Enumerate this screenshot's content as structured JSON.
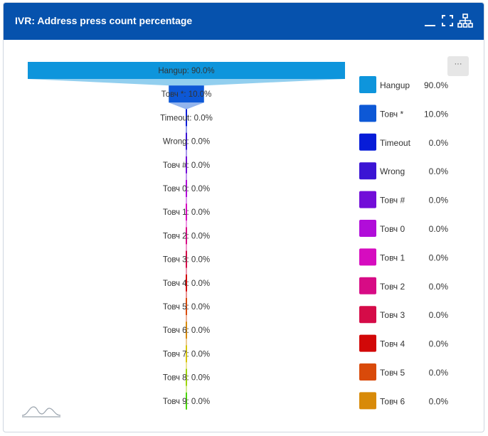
{
  "header": {
    "title": "IVR: Address press count percentage"
  },
  "icons": {
    "minimize": "minimize-icon",
    "fullscreen": "fullscreen-icon",
    "hierarchy": "hierarchy-icon",
    "more": "more-options-icon",
    "chart_logo": "chart-logo-icon"
  },
  "more_label": "···",
  "chart_data": {
    "type": "funnel",
    "title": "IVR: Address press count percentage",
    "categories": [
      "Hangup",
      "Товч *",
      "Timeout",
      "Wrong",
      "Товч #",
      "Товч 0",
      "Товч 1",
      "Товч 2",
      "Товч 3",
      "Товч 4",
      "Товч 5",
      "Товч 6",
      "Товч 7",
      "Товч 8",
      "Товч 9"
    ],
    "values": [
      90.0,
      10.0,
      0.0,
      0.0,
      0.0,
      0.0,
      0.0,
      0.0,
      0.0,
      0.0,
      0.0,
      0.0,
      0.0,
      0.0,
      0.0
    ],
    "labels": [
      "Hangup: 90.0%",
      "Товч *: 10.0%",
      "Timeout: 0.0%",
      "Wrong: 0.0%",
      "Товч #: 0.0%",
      "Товч 0: 0.0%",
      "Товч 1: 0.0%",
      "Товч 2: 0.0%",
      "Товч 3: 0.0%",
      "Товч 4: 0.0%",
      "Товч 5: 0.0%",
      "Товч 6: 0.0%",
      "Товч 7: 0.0%",
      "Товч 8: 0.0%",
      "Товч 9: 0.0%"
    ],
    "colors": [
      "#0e95dc",
      "#0d58d6",
      "#071cd8",
      "#3b14d4",
      "#720dd8",
      "#b10dd9",
      "#d60cbf",
      "#d70b85",
      "#d50b48",
      "#d20808",
      "#d94a0a",
      "#d88a08",
      "#d6c40c",
      "#9dd40c",
      "#4ad40b"
    ],
    "legend": {
      "position": "right",
      "items": [
        {
          "name": "Hangup",
          "value": "90.0%"
        },
        {
          "name": "Товч *",
          "value": "10.0%"
        },
        {
          "name": "Timeout",
          "value": "0.0%"
        },
        {
          "name": "Wrong",
          "value": "0.0%"
        },
        {
          "name": "Товч #",
          "value": "0.0%"
        },
        {
          "name": "Товч 0",
          "value": "0.0%"
        },
        {
          "name": "Товч 1",
          "value": "0.0%"
        },
        {
          "name": "Товч 2",
          "value": "0.0%"
        },
        {
          "name": "Товч 3",
          "value": "0.0%"
        },
        {
          "name": "Товч 4",
          "value": "0.0%"
        },
        {
          "name": "Товч 5",
          "value": "0.0%"
        },
        {
          "name": "Товч 6",
          "value": "0.0%"
        }
      ]
    }
  }
}
